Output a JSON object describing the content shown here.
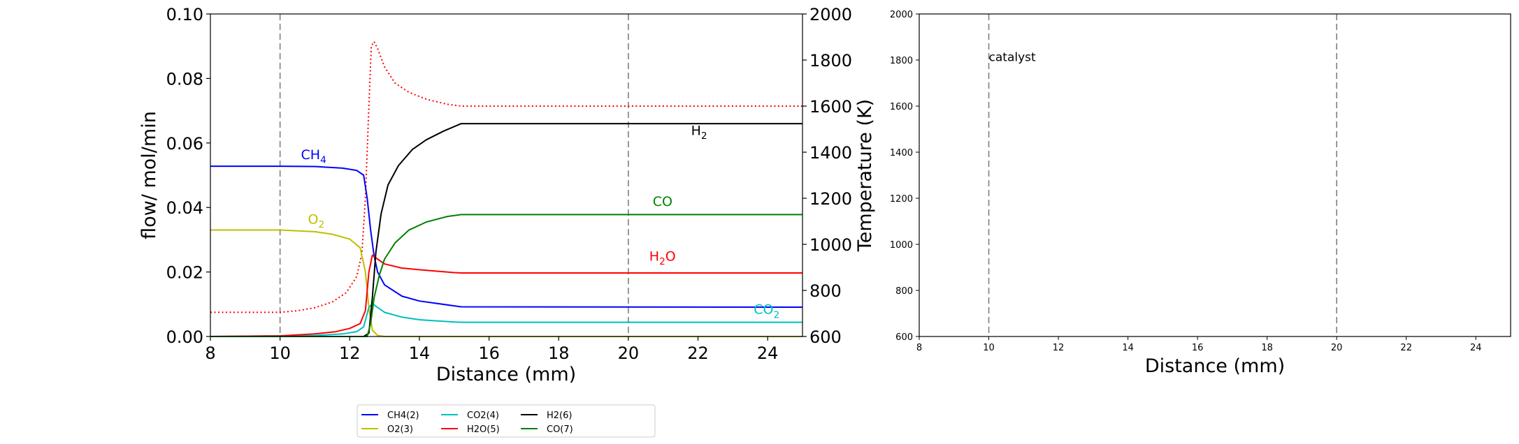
{
  "chart_data": [
    {
      "type": "line",
      "panel": "left",
      "xlabel": "Distance (mm)",
      "ylabel": "flow/ mol/min",
      "y2label": "Temperature (K)",
      "xlim": [
        8,
        25
      ],
      "ylim": [
        0,
        0.1
      ],
      "y2lim": [
        600,
        2000
      ],
      "xticks": [
        "8",
        "10",
        "12",
        "14",
        "16",
        "18",
        "20",
        "22",
        "24"
      ],
      "yticks": [
        "0.00",
        "0.02",
        "0.04",
        "0.06",
        "0.08",
        "0.10"
      ],
      "y2ticks": [
        "600",
        "800",
        "1000",
        "1200",
        "1400",
        "1600",
        "1800",
        "2000"
      ],
      "vlines": [
        10,
        20
      ],
      "series": [
        {
          "name": "CH4(2)",
          "color": "#0000ff",
          "x": [
            8,
            10,
            11,
            11.8,
            12.2,
            12.4,
            12.5,
            12.6,
            12.7,
            12.8,
            13,
            13.5,
            14,
            15,
            15.2,
            25
          ],
          "values": [
            0.0528,
            0.0528,
            0.0527,
            0.0522,
            0.0515,
            0.05,
            0.043,
            0.033,
            0.025,
            0.02,
            0.016,
            0.0125,
            0.011,
            0.0095,
            0.0092,
            0.0091
          ]
        },
        {
          "name": "O2(3)",
          "color": "#bfbf00",
          "x": [
            8,
            10,
            11,
            11.5,
            12,
            12.3,
            12.45,
            12.55,
            12.65,
            12.8,
            13,
            25
          ],
          "values": [
            0.033,
            0.033,
            0.0325,
            0.0317,
            0.0302,
            0.0275,
            0.02,
            0.009,
            0.002,
            0.0003,
            0,
            0
          ]
        },
        {
          "name": "CO2(4)",
          "color": "#00bfbf",
          "x": [
            8,
            11,
            11.8,
            12.2,
            12.4,
            12.55,
            12.65,
            12.8,
            13,
            13.5,
            14,
            15,
            15.2,
            25
          ],
          "values": [
            0,
            0.0003,
            0.0008,
            0.0015,
            0.003,
            0.009,
            0.0102,
            0.009,
            0.0075,
            0.006,
            0.0052,
            0.0045,
            0.0044,
            0.0044
          ]
        },
        {
          "name": "H2O(5)",
          "color": "#ff0000",
          "x": [
            8,
            10,
            11,
            11.6,
            12,
            12.3,
            12.45,
            12.55,
            12.65,
            12.8,
            13,
            13.5,
            14,
            15,
            15.2,
            25
          ],
          "values": [
            0,
            0.0002,
            0.0008,
            0.0015,
            0.0025,
            0.004,
            0.008,
            0.02,
            0.0252,
            0.024,
            0.0225,
            0.0212,
            0.0207,
            0.0198,
            0.0197,
            0.0197
          ]
        },
        {
          "name": "H2(6)",
          "color": "#000000",
          "x": [
            8,
            12.4,
            12.55,
            12.65,
            12.75,
            12.9,
            13.1,
            13.4,
            13.8,
            14.2,
            14.7,
            15.2,
            25
          ],
          "values": [
            0,
            0,
            0.001,
            0.012,
            0.026,
            0.038,
            0.047,
            0.053,
            0.058,
            0.061,
            0.0637,
            0.066,
            0.066
          ]
        },
        {
          "name": "CO(7)",
          "color": "#008000",
          "x": [
            8,
            12.5,
            12.6,
            12.7,
            12.85,
            13,
            13.3,
            13.7,
            14.2,
            14.8,
            15.2,
            25
          ],
          "values": [
            0,
            0,
            0.004,
            0.012,
            0.019,
            0.024,
            0.029,
            0.033,
            0.0355,
            0.0372,
            0.0378,
            0.0378
          ]
        }
      ],
      "temperature": {
        "name": "Temperature",
        "color": "#ff0000",
        "style": "dotted",
        "x": [
          8,
          10,
          10.5,
          11,
          11.5,
          11.9,
          12.2,
          12.35,
          12.45,
          12.55,
          12.62,
          12.7,
          12.8,
          13,
          13.3,
          13.7,
          14.2,
          14.8,
          15.2,
          25
        ],
        "values": [
          705,
          705,
          712,
          725,
          750,
          790,
          860,
          960,
          1200,
          1600,
          1860,
          1880,
          1850,
          1770,
          1700,
          1660,
          1630,
          1608,
          1600,
          1600
        ]
      },
      "annotations": [
        {
          "text": "CH4",
          "sub": "4",
          "base": "CH",
          "x": 10.6,
          "y": 0.055,
          "color": "#0000ff"
        },
        {
          "text": "O2",
          "sub": "2",
          "base": "O",
          "x": 10.8,
          "y": 0.035,
          "color": "#bfbf00"
        },
        {
          "text": "H2",
          "sub": "2",
          "base": "H",
          "x": 21.8,
          "y": 0.0625,
          "color": "#000000"
        },
        {
          "text": "CO",
          "sub": "",
          "base": "CO",
          "x": 20.7,
          "y": 0.0405,
          "color": "#008000"
        },
        {
          "text": "H2O",
          "sub": "2",
          "base": "H",
          "tail": "O",
          "x": 20.6,
          "y": 0.0235,
          "color": "#ff0000"
        },
        {
          "text": "CO2",
          "sub": "2",
          "base": "CO",
          "x": 23.6,
          "y": 0.007,
          "color": "#00bfbf"
        }
      ]
    },
    {
      "type": "line",
      "panel": "right",
      "xlabel": "Distance (mm)",
      "xlim": [
        8,
        25
      ],
      "ylim": [
        600,
        2000
      ],
      "xticks": [
        "8",
        "10",
        "12",
        "14",
        "16",
        "18",
        "20",
        "22",
        "24"
      ],
      "yticks": [
        "600",
        "800",
        "1000",
        "1200",
        "1400",
        "1600",
        "1800",
        "2000"
      ],
      "vlines": [
        10,
        20
      ],
      "annotations": [
        {
          "text": "catalyst",
          "x": 10,
          "y": 1820
        }
      ],
      "series": []
    }
  ],
  "legend": {
    "entries": [
      "CH4(2)",
      "O2(3)",
      "CO2(4)",
      "H2O(5)",
      "H2(6)",
      "CO(7)"
    ],
    "colors": [
      "#0000ff",
      "#bfbf00",
      "#00bfbf",
      "#ff0000",
      "#000000",
      "#008000"
    ],
    "placement": "bottom-center"
  }
}
